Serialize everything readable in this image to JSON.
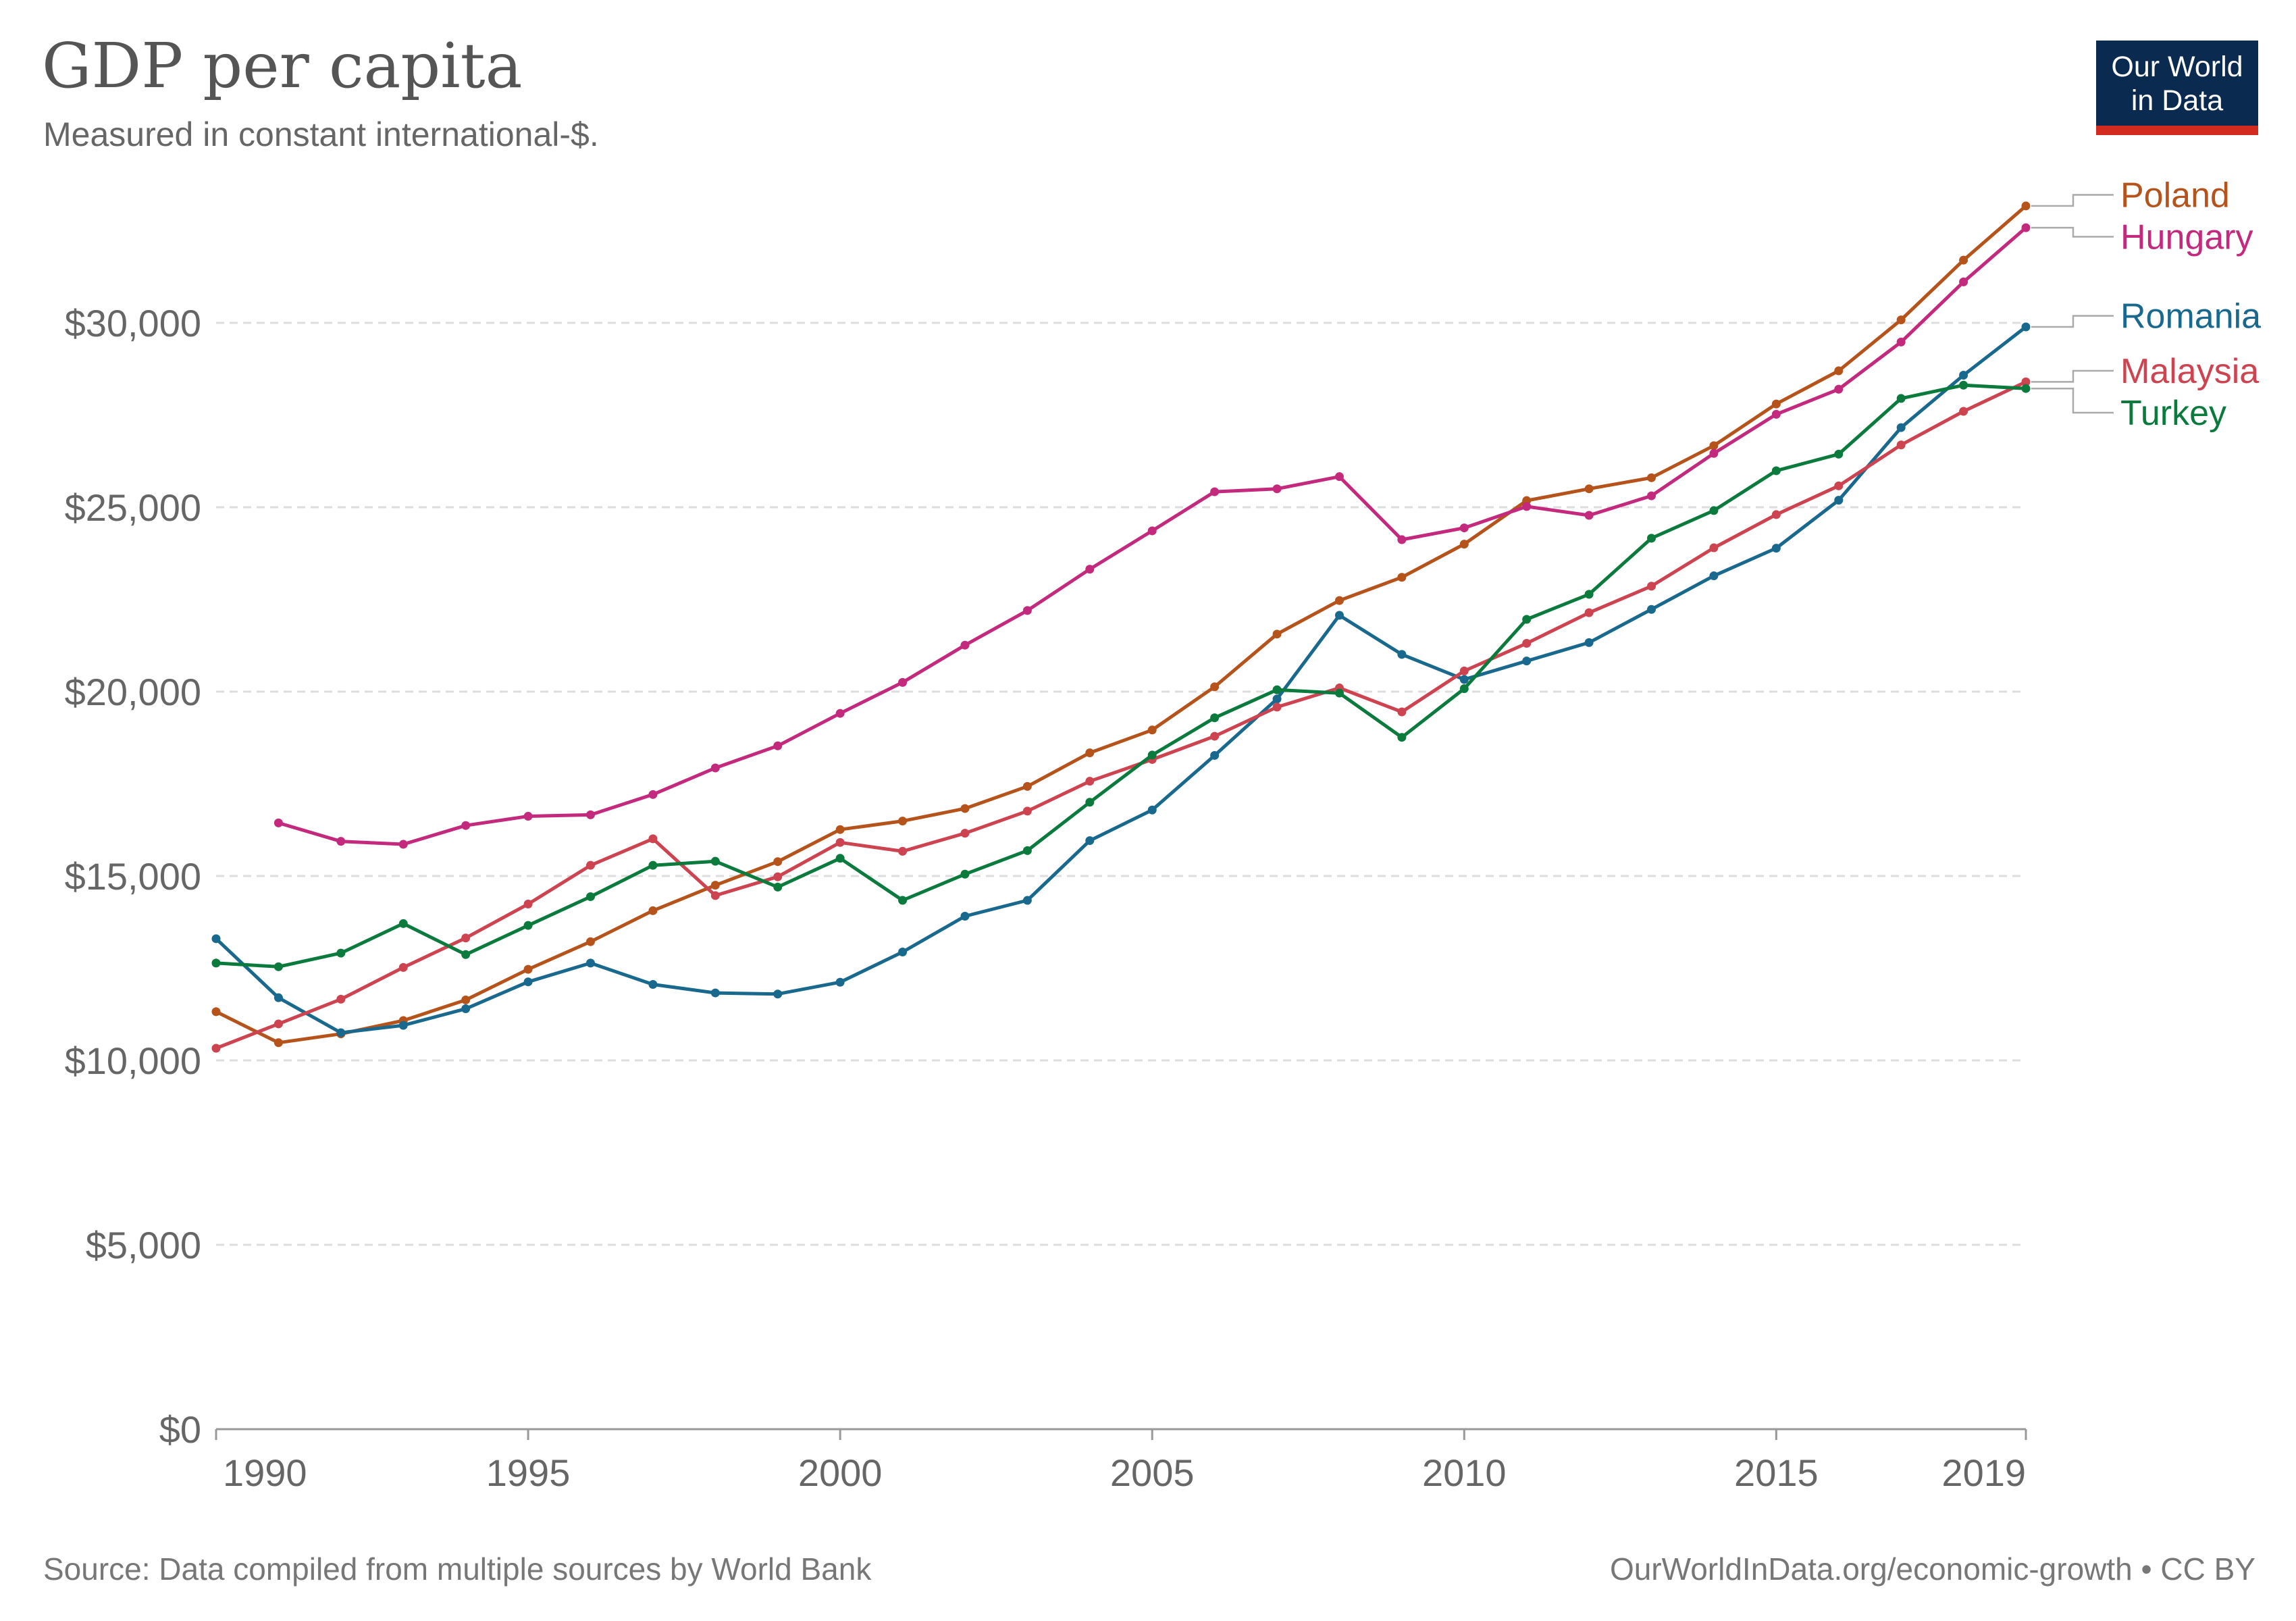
{
  "header": {
    "title": "GDP per capita",
    "subtitle": "Measured in constant international-$."
  },
  "logo": {
    "line1": "Our World",
    "line2": "in Data"
  },
  "footer": {
    "source": "Source: Data compiled from multiple sources by World Bank",
    "credit": "OurWorldInData.org/economic-growth • CC BY"
  },
  "chart_data": {
    "type": "line",
    "title": "GDP per capita",
    "subtitle": "Measured in constant international-$.",
    "xlabel": "",
    "ylabel": "",
    "xlim": [
      1990,
      2019
    ],
    "ylim": [
      0,
      30000
    ],
    "x_ticks": [
      "1990",
      "1995",
      "2000",
      "2005",
      "2010",
      "2015",
      "2019"
    ],
    "y_ticks": [
      "$0",
      "$5,000",
      "$10,000",
      "$15,000",
      "$20,000",
      "$25,000",
      "$30,000"
    ],
    "grid": true,
    "legend_placement": "right (end-of-line labels)",
    "x": [
      1990,
      1991,
      1992,
      1993,
      1994,
      1995,
      1996,
      1997,
      1998,
      1999,
      2000,
      2001,
      2002,
      2003,
      2004,
      2005,
      2006,
      2007,
      2008,
      2009,
      2010,
      2011,
      2012,
      2013,
      2014,
      2015,
      2016,
      2017,
      2018,
      2019
    ],
    "series": [
      {
        "name": "Poland",
        "color": "#b5531b",
        "values": [
          11320,
          10480,
          10720,
          11080,
          11640,
          12470,
          13220,
          14060,
          14750,
          15390,
          16260,
          16490,
          16830,
          17430,
          18340,
          18960,
          20130,
          21560,
          22470,
          23100,
          24000,
          25180,
          25500,
          25800,
          26670,
          27800,
          28700,
          30080,
          31700,
          33170
        ]
      },
      {
        "name": "Hungary",
        "color": "#c3297c",
        "values": [
          null,
          16440,
          15940,
          15860,
          16370,
          16620,
          16660,
          17210,
          17930,
          18530,
          19410,
          20250,
          21260,
          22200,
          23320,
          24360,
          25420,
          25500,
          25830,
          24120,
          24440,
          25020,
          24780,
          25310,
          26460,
          27520,
          28200,
          29480,
          31110,
          32580
        ]
      },
      {
        "name": "Romania",
        "color": "#19688e",
        "values": [
          13300,
          11700,
          10750,
          10950,
          11400,
          12130,
          12640,
          12060,
          11830,
          11800,
          12120,
          12940,
          13910,
          14340,
          15960,
          16790,
          18270,
          19800,
          22070,
          21010,
          20330,
          20830,
          21330,
          22230,
          23140,
          23890,
          25190,
          27160,
          28580,
          29890
        ]
      },
      {
        "name": "Malaysia",
        "color": "#ce4350",
        "values": [
          10330,
          10990,
          11660,
          12520,
          13320,
          14240,
          15290,
          16010,
          14470,
          14980,
          15910,
          15670,
          16160,
          16760,
          17570,
          18160,
          18790,
          19580,
          20100,
          19450,
          20560,
          21310,
          22140,
          22860,
          23900,
          24800,
          25580,
          26690,
          27600,
          28400
        ]
      },
      {
        "name": "Turkey",
        "color": "#0b7a3d",
        "values": [
          12640,
          12540,
          12910,
          13710,
          12870,
          13660,
          14440,
          15290,
          15400,
          14700,
          15480,
          14340,
          15050,
          15690,
          17000,
          18280,
          19290,
          20050,
          19960,
          18760,
          20080,
          21960,
          22640,
          24160,
          24910,
          25990,
          26440,
          27950,
          28310,
          28220
        ]
      }
    ]
  }
}
